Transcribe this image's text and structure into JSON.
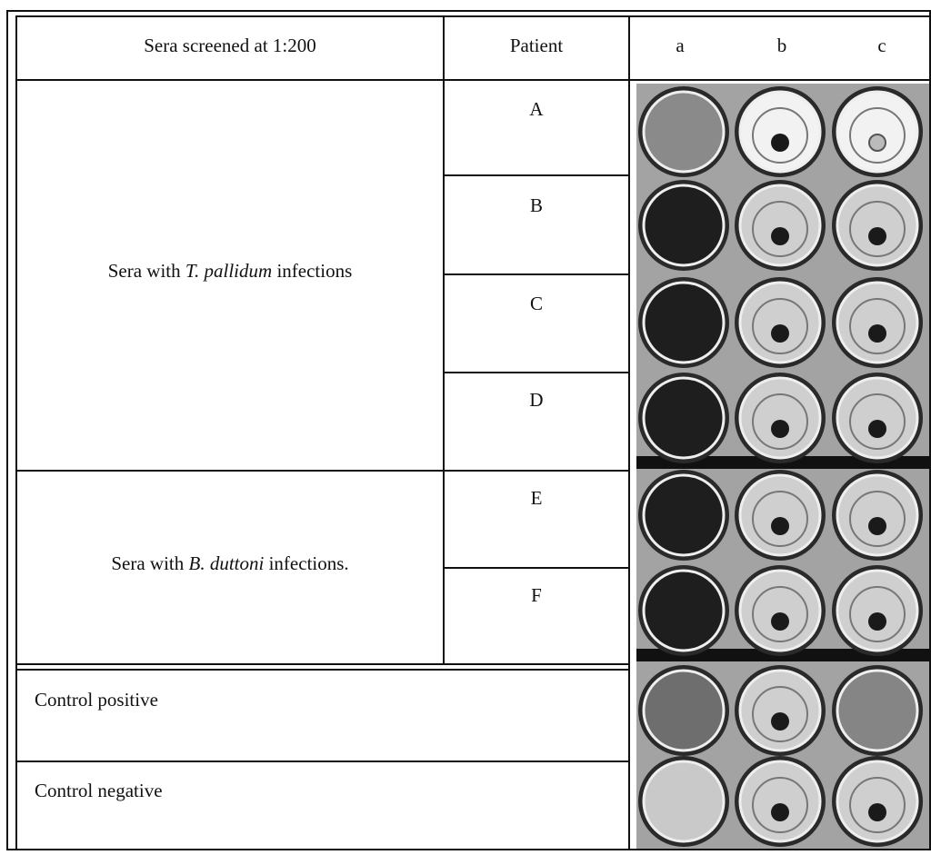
{
  "header": {
    "title": "Sera screened at 1:200",
    "patient": "Patient",
    "wells": [
      "a",
      "b",
      "c"
    ]
  },
  "groups": [
    {
      "label": {
        "prefix": "Sera with ",
        "species": "T. pallidum",
        "suffix": " infections"
      },
      "patients": [
        "A",
        "B",
        "C",
        "D"
      ]
    },
    {
      "label": {
        "prefix": "Sera with ",
        "species": "B. duttoni",
        "suffix": " infections."
      },
      "patients": [
        "E",
        "F"
      ]
    }
  ],
  "controls": [
    "Control positive",
    "Control negative"
  ]
}
